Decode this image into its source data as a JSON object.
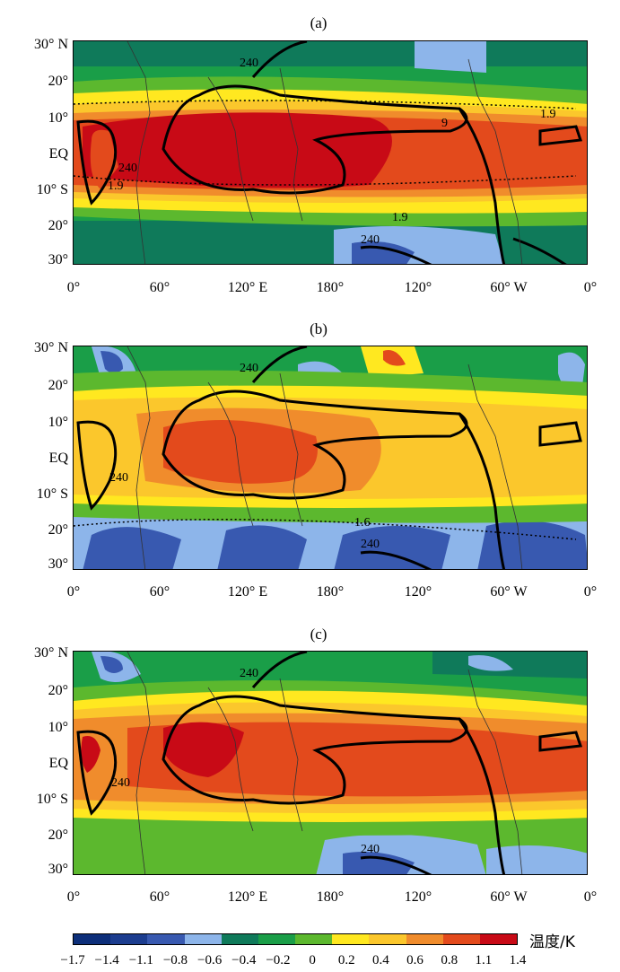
{
  "panels": [
    {
      "label": "(a)",
      "contour_labels": [
        "240",
        "1.9",
        "240",
        "1.9",
        "1.9",
        "240",
        "9"
      ],
      "colors": {
        "core": "#c80a16",
        "mid": "#e34a1c",
        "warm": "#f08c2c"
      }
    },
    {
      "label": "(b)",
      "contour_labels": [
        "240",
        "240",
        "1.6",
        "240"
      ],
      "colors": {
        "core": "#e34a1c",
        "mid": "#f08c2c",
        "warm": "#fbc72c"
      }
    },
    {
      "label": "(c)",
      "contour_labels": [
        "240",
        "240",
        "240"
      ],
      "colors": {
        "core": "#c80a16",
        "mid": "#e34a1c",
        "warm": "#f08c2c"
      }
    }
  ],
  "y_axis": [
    "30° N",
    "20°",
    "10°",
    "EQ",
    "10° S",
    "20°",
    "30°"
  ],
  "x_axis": [
    "0°",
    "60°",
    "120° E",
    "180°",
    "120°",
    "60° W",
    "0°"
  ],
  "colorbar": {
    "unit": "温度/K",
    "colors": [
      "#0d2f7a",
      "#1c3d8f",
      "#3859b0",
      "#8db5ea",
      "#0f7a5a",
      "#1a9e48",
      "#5cb82e",
      "#ffe820",
      "#fbc72c",
      "#f08c2c",
      "#e34a1c",
      "#c80a16"
    ],
    "ticks": [
      "−1.7",
      "−1.4",
      "−1.1",
      "−0.8",
      "−0.6",
      "−0.4",
      "−0.2",
      "0",
      "0.2",
      "0.4",
      "0.6",
      "0.8",
      "1.1",
      "1.4"
    ]
  }
}
